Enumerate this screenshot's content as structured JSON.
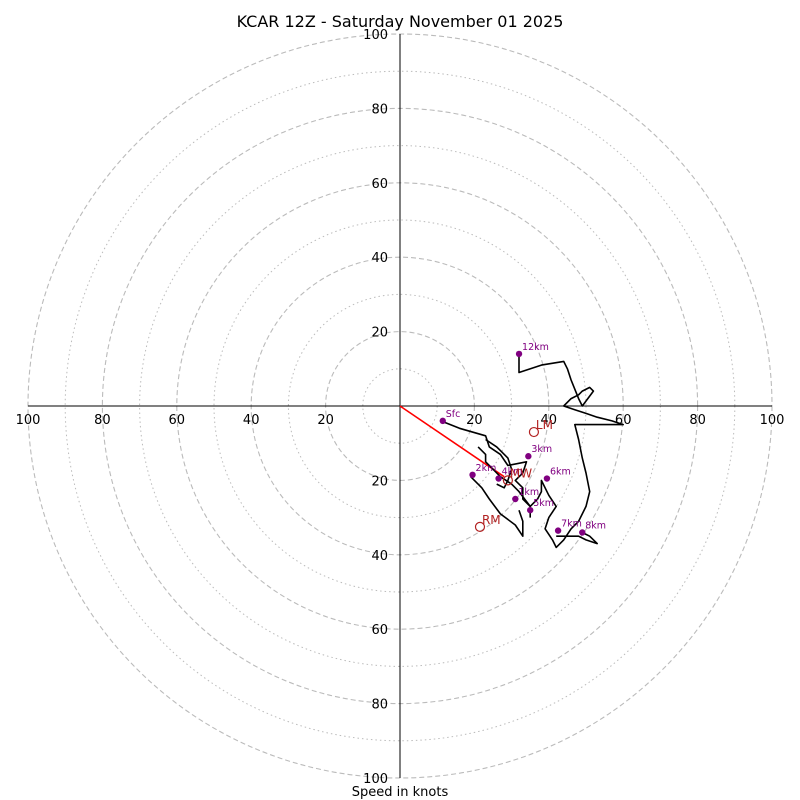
{
  "chart_data": {
    "type": "scatter",
    "title": "KCAR 12Z - Saturday November 01 2025",
    "xlabel": "Speed in knots",
    "max_speed": 100,
    "ring_major": [
      20,
      40,
      60,
      80,
      100
    ],
    "ring_minor": [
      10,
      30,
      50,
      70,
      90
    ],
    "tick_labels": {
      "left": [
        "100",
        "80",
        "60",
        "40",
        "20"
      ],
      "right": [
        "20",
        "40",
        "60",
        "80",
        "100"
      ],
      "up": [
        "20",
        "40",
        "60",
        "80",
        "100"
      ],
      "down": [
        "20",
        "40",
        "60",
        "80",
        "100"
      ]
    },
    "hodograph_trace": [
      [
        11,
        -4
      ],
      [
        16,
        -6
      ],
      [
        23,
        -8
      ],
      [
        24,
        -11
      ],
      [
        27,
        -13
      ],
      [
        29,
        -16
      ],
      [
        34,
        -15
      ],
      [
        33,
        -18
      ],
      [
        31,
        -20
      ],
      [
        33,
        -22
      ],
      [
        33,
        -25
      ],
      [
        35,
        -27
      ],
      [
        37,
        -25
      ],
      [
        38,
        -23
      ],
      [
        38,
        -20
      ],
      [
        40,
        -24
      ],
      [
        42,
        -27
      ],
      [
        40,
        -30
      ],
      [
        39,
        -33
      ],
      [
        41,
        -36
      ],
      [
        42,
        -38
      ],
      [
        44,
        -36
      ],
      [
        46,
        -33
      ],
      [
        48,
        -31
      ],
      [
        49,
        -29
      ],
      [
        50,
        -27
      ],
      [
        51,
        -23
      ],
      [
        50,
        -18
      ],
      [
        49,
        -14
      ],
      [
        48,
        -9
      ],
      [
        47,
        -5
      ],
      [
        49,
        -5
      ],
      [
        53,
        -5
      ],
      [
        60,
        -5
      ],
      [
        57,
        -4
      ],
      [
        53,
        -3
      ],
      [
        50,
        -2
      ],
      [
        47,
        -1
      ],
      [
        44,
        0
      ],
      [
        46,
        2
      ],
      [
        48,
        3
      ],
      [
        49,
        4
      ],
      [
        51,
        5
      ],
      [
        52,
        4
      ],
      [
        49,
        0
      ],
      [
        48,
        2
      ],
      [
        46,
        7
      ],
      [
        45,
        10
      ],
      [
        44,
        12
      ],
      [
        38,
        11
      ],
      [
        32,
        9
      ],
      [
        32,
        14
      ]
    ],
    "hodograph_trace_b": [
      [
        35,
        -30
      ],
      [
        35,
        -27
      ],
      [
        32,
        -23
      ],
      [
        30,
        -21
      ],
      [
        27,
        -19
      ],
      [
        25,
        -17
      ],
      [
        23,
        -15
      ],
      [
        23,
        -13
      ],
      [
        21,
        -11
      ]
    ],
    "hodograph_trace_c": [
      [
        26,
        -21
      ],
      [
        28,
        -22
      ],
      [
        29,
        -20
      ],
      [
        30,
        -17
      ],
      [
        29,
        -14
      ],
      [
        27,
        -12
      ],
      [
        26,
        -11
      ],
      [
        23,
        -9
      ]
    ],
    "hodograph_trace_d": [
      [
        19,
        -19
      ],
      [
        22,
        -22
      ],
      [
        24,
        -25
      ],
      [
        27,
        -29
      ],
      [
        31,
        -32
      ],
      [
        33,
        -35
      ],
      [
        33,
        -31
      ],
      [
        32,
        -28
      ]
    ],
    "hodograph_trace_e": [
      [
        42,
        -35
      ],
      [
        44,
        -35
      ],
      [
        46,
        -35
      ],
      [
        48,
        -35
      ],
      [
        50,
        -36
      ],
      [
        53,
        -37
      ],
      [
        51,
        -35
      ],
      [
        49,
        -34
      ]
    ],
    "shear_vector": {
      "from": [
        0,
        0
      ],
      "to": [
        28,
        -19
      ],
      "color": "#ff0000"
    },
    "height_markers": [
      {
        "label": "Sfc",
        "u": 11.5,
        "v": -4
      },
      {
        "label": "2km",
        "u": 19.5,
        "v": -18.5
      },
      {
        "label": "3km",
        "u": 34.5,
        "v": -13.5
      },
      {
        "label": "4km",
        "u": 26.5,
        "v": -19.5
      },
      {
        "label": "5km",
        "u": 35,
        "v": -28
      },
      {
        "label": "6km",
        "u": 39.5,
        "v": -19.5
      },
      {
        "label": "7km",
        "u": 42.5,
        "v": -33.5
      },
      {
        "label": "8km",
        "u": 49,
        "v": -34
      },
      {
        "label": "1km",
        "u": 31,
        "v": -25
      },
      {
        "label": "12km",
        "u": 32,
        "v": 14
      }
    ],
    "motion_markers": [
      {
        "label": "LM",
        "u": 36,
        "v": -7
      },
      {
        "label": "MW",
        "u": 29,
        "v": -20
      },
      {
        "label": "RM",
        "u": 21.5,
        "v": -32.5
      }
    ],
    "colors": {
      "trace": "#000000",
      "height_marker": "#800080",
      "motion_marker": "#b22222",
      "grid": "#bbbbbb",
      "axis": "#000000"
    }
  }
}
